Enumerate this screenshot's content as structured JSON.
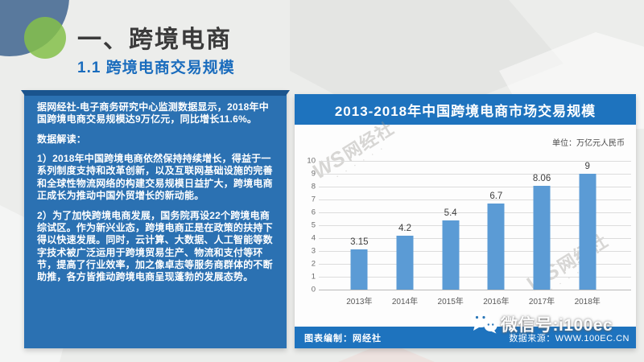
{
  "header": {
    "title": "一、跨境电商",
    "subtitle": "1.1 跨境电商交易规模"
  },
  "left_panel": {
    "intro": "据网经社-电子商务研究中心监测数据显示，2018年中国跨境电商交易规模达9万亿元，同比增长11.6%。",
    "section_label": "数据解读：",
    "point1": "1）2018年中国跨境电商依然保持持续增长，得益于一系列制度支持和改革创新，以及互联网基础设施的完善和全球性物流网络的构建交易规模日益扩大，跨境电商正成长为推动中国外贸增长的新动能。",
    "point2": "2）为了加快跨境电商发展，国务院再设22个跨境电商综试区。作为新兴业态，跨境电商正是在政策的扶持下得以快速发展。同时，云计算、大数据、人工智能等数字技术被广泛运用于跨境贸易生产、物流和支付等环节，提高了行业效率，加之像卓志等服务商群体的不断助推，各方皆推动跨境电商呈现蓬勃的发展态势。"
  },
  "chart": {
    "banner_title": "2013-2018年中国跨境电商市场交易规模",
    "unit_label": "单位：万亿元人民币",
    "footer_left": "图表编制：网经社",
    "footer_right": "数据来源：WWW.100EC.CN",
    "watermark": {
      "monogram": "WS",
      "label": "网经社"
    },
    "colors": {
      "bar": "#5b9bd5",
      "banner": "#1e73be",
      "panel": "#2b71b2",
      "accent": "#1a6cbd"
    }
  },
  "chart_data": {
    "type": "bar",
    "categories": [
      "2013年",
      "2014年",
      "2015年",
      "2016年",
      "2017年",
      "2018年"
    ],
    "values": [
      3.15,
      4.2,
      5.4,
      6.7,
      8.06,
      9
    ],
    "title": "2013-2018年中国跨境电商市场交易规模",
    "xlabel": "",
    "ylabel": "",
    "unit": "万亿元人民币",
    "ylim": [
      0,
      10
    ],
    "ytick_step": 1,
    "grid": true,
    "legend": false
  },
  "overlay": {
    "wechat_label": "微信号:i100ec"
  }
}
